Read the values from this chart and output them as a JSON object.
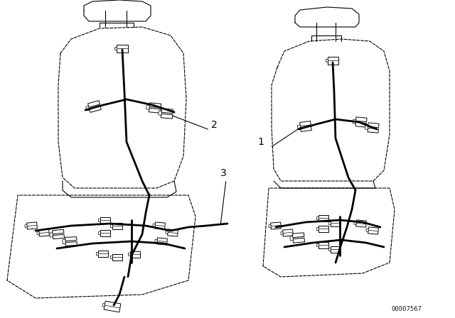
{
  "bg_color": "#ffffff",
  "line_color": "#000000",
  "lw": 0.8,
  "tlw": 2.0,
  "part_number": "00007567",
  "figsize": [
    6.4,
    4.48
  ],
  "dpi": 100,
  "labels": {
    "1": [
      393,
      207
    ],
    "2": [
      296,
      183
    ],
    "3": [
      310,
      248
    ]
  },
  "label1_line": [
    [
      370,
      215
    ],
    [
      455,
      185
    ]
  ],
  "label2_line": [
    [
      281,
      188
    ],
    [
      240,
      170
    ]
  ],
  "label3_line": [
    [
      307,
      253
    ],
    [
      278,
      270
    ]
  ]
}
